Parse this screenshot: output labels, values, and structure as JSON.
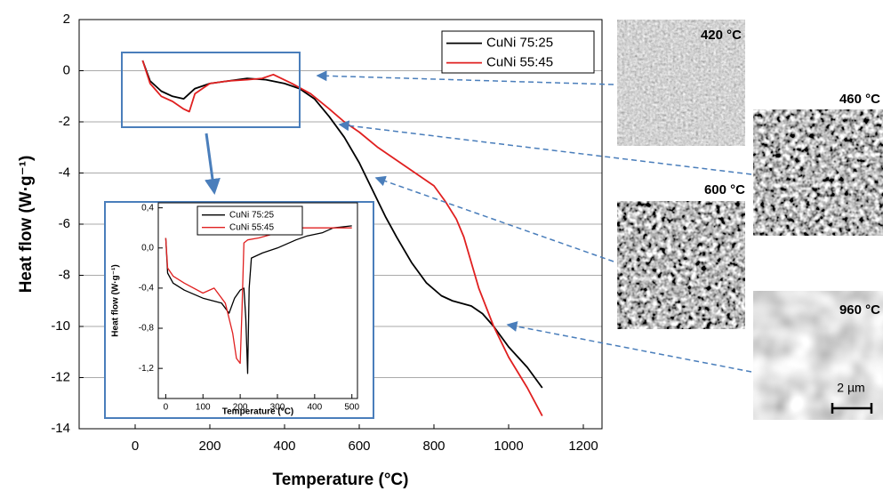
{
  "chart_data": [
    {
      "type": "line",
      "xlabel": "Temperature (°C)",
      "ylabel": "Heat flow (W·g⁻¹)",
      "xlim": [
        -150,
        1250
      ],
      "xticks": [
        0,
        200,
        400,
        600,
        800,
        1000,
        1200
      ],
      "ylim": [
        -14,
        2
      ],
      "yticks": [
        -14,
        -12,
        -10,
        -8,
        -6,
        -4,
        -2,
        0,
        2
      ],
      "grid": true,
      "series": [
        {
          "name": "CuNi 75:25",
          "color": "#000000",
          "x": [
            20,
            40,
            70,
            100,
            130,
            160,
            200,
            250,
            300,
            350,
            400,
            440,
            480,
            520,
            560,
            600,
            630,
            670,
            700,
            740,
            780,
            820,
            850,
            900,
            930,
            960,
            1000,
            1050,
            1090
          ],
          "values": [
            0.4,
            -0.4,
            -0.8,
            -1.0,
            -1.1,
            -0.7,
            -0.5,
            -0.4,
            -0.3,
            -0.35,
            -0.5,
            -0.7,
            -1.1,
            -1.8,
            -2.6,
            -3.6,
            -4.5,
            -5.7,
            -6.5,
            -7.5,
            -8.3,
            -8.8,
            -9.0,
            -9.2,
            -9.5,
            -10.0,
            -10.8,
            -11.6,
            -12.4
          ]
        },
        {
          "name": "CuNi 55:45",
          "color": "#e02020",
          "x": [
            20,
            40,
            70,
            100,
            130,
            145,
            160,
            200,
            250,
            300,
            340,
            370,
            420,
            470,
            520,
            560,
            600,
            650,
            700,
            750,
            800,
            830,
            860,
            880,
            920,
            960,
            1000,
            1050,
            1090
          ],
          "values": [
            0.4,
            -0.5,
            -1.0,
            -1.2,
            -1.5,
            -1.6,
            -0.9,
            -0.5,
            -0.4,
            -0.35,
            -0.3,
            -0.15,
            -0.5,
            -0.9,
            -1.5,
            -2.0,
            -2.4,
            -3.0,
            -3.5,
            -4.0,
            -4.5,
            -5.1,
            -5.8,
            -6.5,
            -8.5,
            -10.0,
            -11.2,
            -12.4,
            -13.5
          ]
        }
      ]
    },
    {
      "type": "line",
      "xlabel": "Temperature (°C)",
      "ylabel": "Heat flow (W·g⁻¹)",
      "xlim": [
        -20,
        515
      ],
      "xticks": [
        0,
        100,
        200,
        300,
        400,
        500
      ],
      "ylim": [
        -1.5,
        0.45
      ],
      "yticks": [
        {
          "value": -1.2,
          "label": "-1,2"
        },
        {
          "value": -0.8,
          "label": "-0,8"
        },
        {
          "value": -0.4,
          "label": "-0,4"
        },
        {
          "value": 0,
          "label": "0,0"
        },
        {
          "value": 0.4,
          "label": "0,4"
        }
      ],
      "grid": false,
      "series": [
        {
          "name": "CuNi 75:25",
          "color": "#000000",
          "x": [
            0,
            5,
            20,
            50,
            100,
            150,
            170,
            185,
            200,
            210,
            215,
            220,
            224,
            230,
            260,
            300,
            350,
            380,
            420,
            450,
            500
          ],
          "values": [
            0.1,
            -0.25,
            -0.35,
            -0.42,
            -0.5,
            -0.55,
            -0.65,
            -0.5,
            -0.42,
            -0.4,
            -0.7,
            -1.25,
            -0.4,
            -0.1,
            -0.05,
            0.0,
            0.08,
            0.12,
            0.15,
            0.2,
            0.22
          ]
        },
        {
          "name": "CuNi 55:45",
          "color": "#e02020",
          "x": [
            0,
            5,
            20,
            50,
            100,
            130,
            160,
            180,
            190,
            200,
            205,
            210,
            220,
            250,
            300,
            350,
            400,
            450,
            500
          ],
          "values": [
            0.1,
            -0.2,
            -0.28,
            -0.35,
            -0.45,
            -0.4,
            -0.55,
            -0.85,
            -1.1,
            -1.15,
            -0.6,
            0.05,
            0.08,
            0.1,
            0.15,
            0.2,
            0.2,
            0.2,
            0.2
          ]
        }
      ]
    }
  ],
  "micrographs": [
    {
      "label": "420 °C"
    },
    {
      "label": "460 °C"
    },
    {
      "label": "600 °C"
    },
    {
      "label": "960 °C"
    }
  ],
  "scale_bar": "2 µm"
}
